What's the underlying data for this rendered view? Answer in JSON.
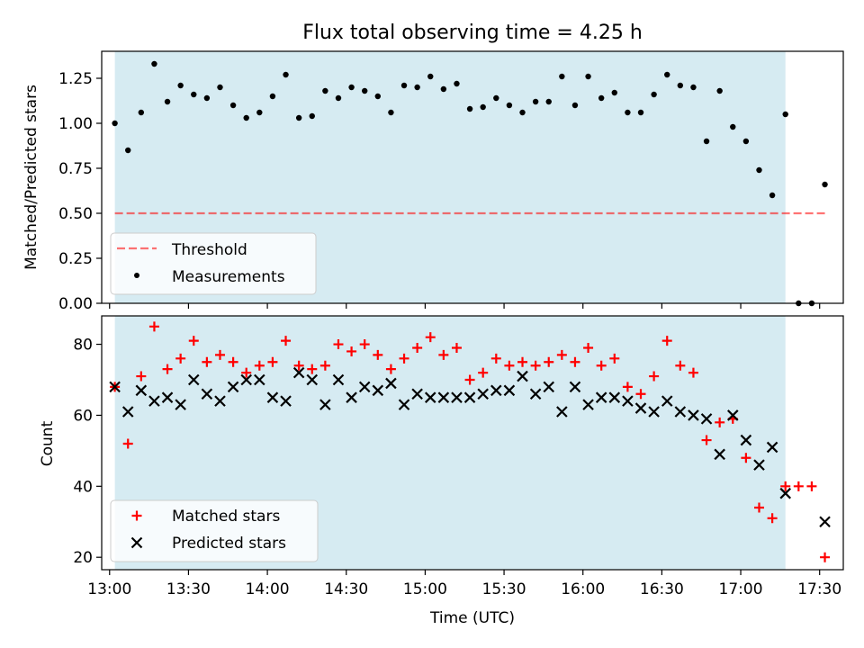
{
  "figure": {
    "title": "Flux total observing time = 4.25 h",
    "xlabel": "Time (UTC)"
  },
  "colors": {
    "shade": "#add8e6",
    "threshold": "#ff0000",
    "measurement": "#000000",
    "matched": "#ff0000",
    "predicted": "#000000"
  },
  "chart_data": [
    {
      "type": "scatter",
      "panel": "top",
      "ylabel": "Matched/Predicted stars",
      "xlim": [
        "12:57",
        "17:39"
      ],
      "ylim": [
        0,
        1.4
      ],
      "yticks": [
        "0.00",
        "0.25",
        "0.50",
        "0.75",
        "1.00",
        "1.25"
      ],
      "xticks": [
        "13:00",
        "13:30",
        "14:00",
        "14:30",
        "15:00",
        "15:30",
        "16:00",
        "16:30",
        "17:00",
        "17:30"
      ],
      "shaded_span": [
        "13:02",
        "17:17"
      ],
      "threshold": {
        "name": "Threshold",
        "y": 0.5,
        "x": [
          "13:02",
          "17:32"
        ],
        "style": "dashed"
      },
      "legend": {
        "position": "lower-left",
        "entries": [
          "Threshold",
          "Measurements"
        ]
      },
      "series": [
        {
          "name": "Measurements",
          "marker": "dot",
          "x": [
            "13:02",
            "13:07",
            "13:12",
            "13:17",
            "13:22",
            "13:27",
            "13:32",
            "13:37",
            "13:42",
            "13:47",
            "13:52",
            "13:57",
            "14:02",
            "14:07",
            "14:12",
            "14:17",
            "14:22",
            "14:27",
            "14:32",
            "14:37",
            "14:42",
            "14:47",
            "14:52",
            "14:57",
            "15:02",
            "15:07",
            "15:12",
            "15:17",
            "15:22",
            "15:27",
            "15:32",
            "15:37",
            "15:42",
            "15:47",
            "15:52",
            "15:57",
            "16:02",
            "16:07",
            "16:12",
            "16:17",
            "16:22",
            "16:27",
            "16:32",
            "16:37",
            "16:42",
            "16:47",
            "16:52",
            "16:57",
            "17:02",
            "17:07",
            "17:12",
            "17:17",
            "17:22",
            "17:27",
            "17:32"
          ],
          "y": [
            1.0,
            0.85,
            1.06,
            1.33,
            1.12,
            1.21,
            1.16,
            1.14,
            1.2,
            1.1,
            1.03,
            1.06,
            1.15,
            1.27,
            1.03,
            1.04,
            1.18,
            1.14,
            1.2,
            1.18,
            1.15,
            1.06,
            1.21,
            1.2,
            1.26,
            1.19,
            1.22,
            1.08,
            1.09,
            1.14,
            1.1,
            1.06,
            1.12,
            1.12,
            1.26,
            1.1,
            1.26,
            1.14,
            1.17,
            1.06,
            1.06,
            1.16,
            1.27,
            1.21,
            1.2,
            0.9,
            1.18,
            0.98,
            0.9,
            0.74,
            0.6,
            1.05,
            0.0,
            0.0,
            0.66
          ]
        }
      ]
    },
    {
      "type": "scatter",
      "panel": "bottom",
      "ylabel": "Count",
      "xlim": [
        "12:57",
        "17:39"
      ],
      "ylim": [
        16.5,
        88
      ],
      "yticks": [
        "20",
        "40",
        "60",
        "80"
      ],
      "xticks": [
        "13:00",
        "13:30",
        "14:00",
        "14:30",
        "15:00",
        "15:30",
        "16:00",
        "16:30",
        "17:00",
        "17:30"
      ],
      "shaded_span": [
        "13:02",
        "17:17"
      ],
      "legend": {
        "position": "lower-left",
        "entries": [
          "Matched stars",
          "Predicted stars"
        ]
      },
      "x": [
        "13:02",
        "13:07",
        "13:12",
        "13:17",
        "13:22",
        "13:27",
        "13:32",
        "13:37",
        "13:42",
        "13:47",
        "13:52",
        "13:57",
        "14:02",
        "14:07",
        "14:12",
        "14:17",
        "14:22",
        "14:27",
        "14:32",
        "14:37",
        "14:42",
        "14:47",
        "14:52",
        "14:57",
        "15:02",
        "15:07",
        "15:12",
        "15:17",
        "15:22",
        "15:27",
        "15:32",
        "15:37",
        "15:42",
        "15:47",
        "15:52",
        "15:57",
        "16:02",
        "16:07",
        "16:12",
        "16:17",
        "16:22",
        "16:27",
        "16:32",
        "16:37",
        "16:42",
        "16:47",
        "16:52",
        "16:57",
        "17:02",
        "17:07",
        "17:12",
        "17:17",
        "17:22",
        "17:27",
        "17:32"
      ],
      "series": [
        {
          "name": "Matched stars",
          "marker": "plus",
          "values": [
            68,
            52,
            71,
            85,
            73,
            76,
            81,
            75,
            77,
            75,
            72,
            74,
            75,
            81,
            74,
            73,
            74,
            80,
            78,
            80,
            77,
            73,
            76,
            79,
            82,
            77,
            79,
            70,
            72,
            76,
            74,
            75,
            74,
            75,
            77,
            75,
            79,
            74,
            76,
            68,
            66,
            71,
            81,
            74,
            72,
            53,
            58,
            59,
            48,
            34,
            31,
            40,
            40,
            40,
            20
          ]
        },
        {
          "name": "Predicted stars",
          "marker": "x",
          "values": [
            68,
            61,
            67,
            64,
            65,
            63,
            70,
            66,
            64,
            68,
            70,
            70,
            65,
            64,
            72,
            70,
            63,
            70,
            65,
            68,
            67,
            69,
            63,
            66,
            65,
            65,
            65,
            65,
            66,
            67,
            67,
            71,
            66,
            68,
            61,
            68,
            63,
            65,
            65,
            64,
            62,
            61,
            64,
            61,
            60,
            59,
            49,
            60,
            53,
            46,
            51,
            38,
            null,
            null,
            30
          ]
        }
      ]
    }
  ]
}
